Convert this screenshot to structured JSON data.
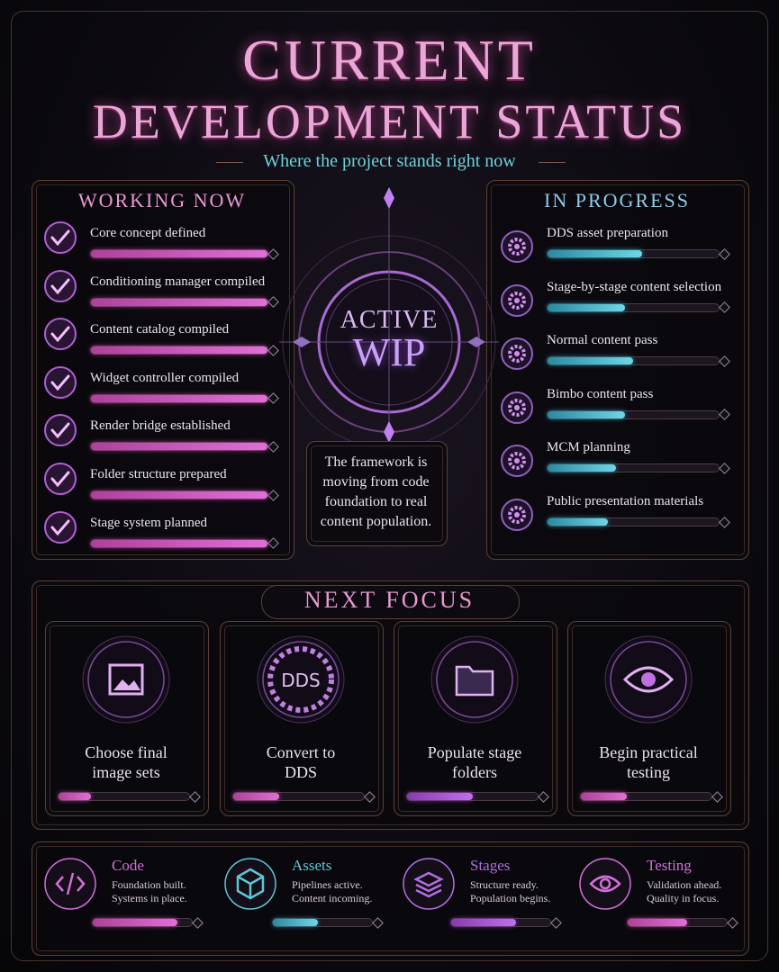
{
  "header": {
    "title_line1": "CURRENT",
    "title_line2": "DEVELOPMENT STATUS",
    "subtitle": "Where the project stands right now"
  },
  "working_now": {
    "title": "WORKING NOW",
    "items": [
      {
        "label": "Core concept defined",
        "progress": 100
      },
      {
        "label": "Conditioning manager compiled",
        "progress": 100
      },
      {
        "label": "Content catalog compiled",
        "progress": 100
      },
      {
        "label": "Widget controller compiled",
        "progress": 100
      },
      {
        "label": "Render bridge established",
        "progress": 100
      },
      {
        "label": "Folder structure prepared",
        "progress": 100
      },
      {
        "label": "Stage system planned",
        "progress": 100
      }
    ]
  },
  "center": {
    "badge_line1": "ACTIVE",
    "badge_line2": "WIP",
    "note_lines": [
      "The framework is",
      "moving from code",
      "foundation to real",
      "content population."
    ]
  },
  "in_progress": {
    "title": "IN PROGRESS",
    "items": [
      {
        "label": "DDS asset preparation",
        "progress": 55
      },
      {
        "label": "Stage-by-stage content selection",
        "progress": 45
      },
      {
        "label": "Normal content pass",
        "progress": 50
      },
      {
        "label": "Bimbo content pass",
        "progress": 45
      },
      {
        "label": "MCM planning",
        "progress": 40
      },
      {
        "label": "Public presentation materials",
        "progress": 35
      }
    ]
  },
  "next_focus": {
    "title": "NEXT FOCUS",
    "items": [
      {
        "lines": [
          "Choose final",
          "image sets"
        ],
        "progress": 25
      },
      {
        "icon_text": "DDS",
        "lines": [
          "Convert to",
          "DDS"
        ],
        "progress": 35
      },
      {
        "lines": [
          "Populate stage",
          "folders"
        ],
        "progress": 50
      },
      {
        "lines": [
          "Begin practical",
          "testing"
        ],
        "progress": 35
      }
    ]
  },
  "summary": {
    "items": [
      {
        "title": "Code",
        "lines": [
          "Foundation built.",
          "Systems in place."
        ],
        "progress": 85
      },
      {
        "title": "Assets",
        "lines": [
          "Pipelines active.",
          "Content incoming."
        ],
        "progress": 45
      },
      {
        "title": "Stages",
        "lines": [
          "Structure ready.",
          "Population begins."
        ],
        "progress": 65
      },
      {
        "title": "Testing",
        "lines": [
          "Validation ahead.",
          "Quality in focus."
        ],
        "progress": 60
      }
    ]
  }
}
